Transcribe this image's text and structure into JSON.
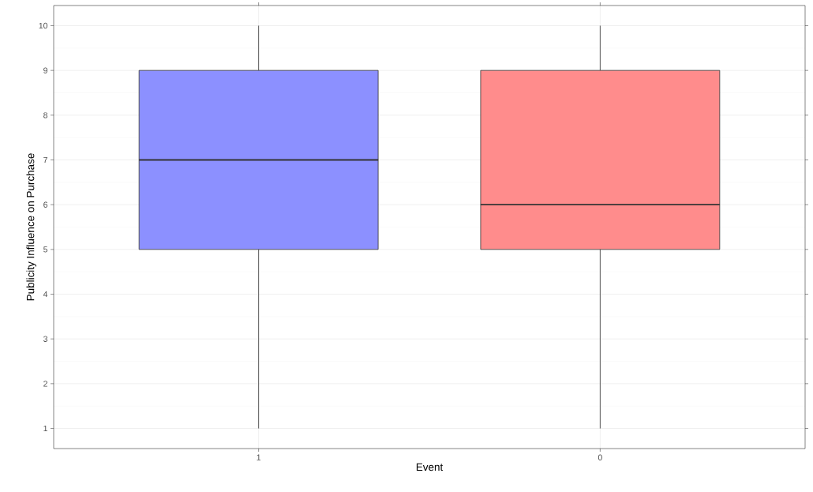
{
  "chart_data": {
    "type": "box",
    "xlabel": "Event",
    "ylabel": "Publicity Influence on Purchase",
    "categories": [
      "1",
      "0"
    ],
    "boxes": [
      {
        "low": 1,
        "q1": 5,
        "median": 7,
        "q3": 9,
        "high": 10
      },
      {
        "low": 1,
        "q1": 5,
        "median": 6,
        "q3": 9,
        "high": 10
      }
    ],
    "colors": [
      "#8c90ff",
      "#ff8c8c"
    ],
    "ylim": [
      0.55,
      10.45
    ],
    "yticks": [
      1,
      2,
      3,
      4,
      5,
      6,
      7,
      8,
      9,
      10
    ],
    "grid": true
  }
}
